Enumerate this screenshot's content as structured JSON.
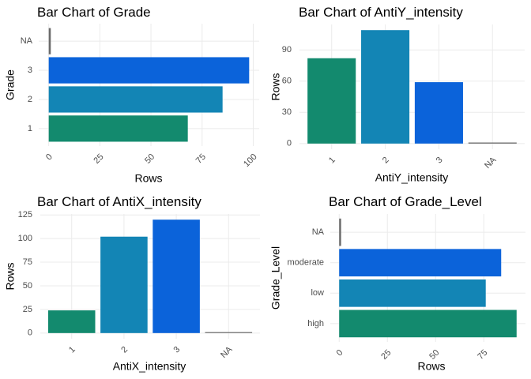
{
  "chart_data": [
    {
      "type": "bar",
      "orientation": "horizontal",
      "title": "Bar Chart of Grade",
      "x_label": "Rows",
      "y_label": "Grade",
      "categories": [
        "1",
        "2",
        "3",
        "NA"
      ],
      "values": [
        68,
        85,
        98,
        1
      ],
      "colors": [
        "#138a6e",
        "#1385b5",
        "#0b63da",
        "#6b6b6b"
      ],
      "xlim": [
        -4.9,
        102.9
      ],
      "xticks": [
        0,
        25,
        50,
        75,
        100
      ],
      "grid": true
    },
    {
      "type": "bar",
      "orientation": "vertical",
      "title": "Bar Chart of AntiY_intensity",
      "x_label": "AntiY_intensity",
      "y_label": "Rows",
      "categories": [
        "1",
        "2",
        "3",
        "NA"
      ],
      "values": [
        82,
        109,
        59,
        1
      ],
      "colors": [
        "#138a6e",
        "#1385b5",
        "#0b63da",
        "#6b6b6b"
      ],
      "ylim": [
        -5.45,
        114.45
      ],
      "yticks": [
        0,
        30,
        60,
        90
      ],
      "grid": true
    },
    {
      "type": "bar",
      "orientation": "vertical",
      "title": "Bar Chart of AntiX_intensity",
      "x_label": "AntiX_intensity",
      "y_label": "Rows",
      "categories": [
        "1",
        "2",
        "3",
        "NA"
      ],
      "values": [
        24,
        102,
        120,
        1
      ],
      "colors": [
        "#138a6e",
        "#1385b5",
        "#0b63da",
        "#6b6b6b"
      ],
      "ylim": [
        -6,
        126
      ],
      "yticks": [
        0,
        25,
        50,
        75,
        100,
        125
      ],
      "grid": true
    },
    {
      "type": "bar",
      "orientation": "horizontal",
      "title": "Bar Chart of Grade_Level",
      "x_label": "Rows",
      "y_label": "Grade_Level",
      "categories": [
        "high",
        "low",
        "moderate",
        "NA"
      ],
      "values": [
        92,
        76,
        84,
        1
      ],
      "colors": [
        "#138a6e",
        "#1385b5",
        "#0b63da",
        "#6b6b6b"
      ],
      "xlim": [
        -4.6,
        96.6
      ],
      "xticks": [
        0,
        25,
        50,
        75
      ],
      "grid": true
    }
  ]
}
